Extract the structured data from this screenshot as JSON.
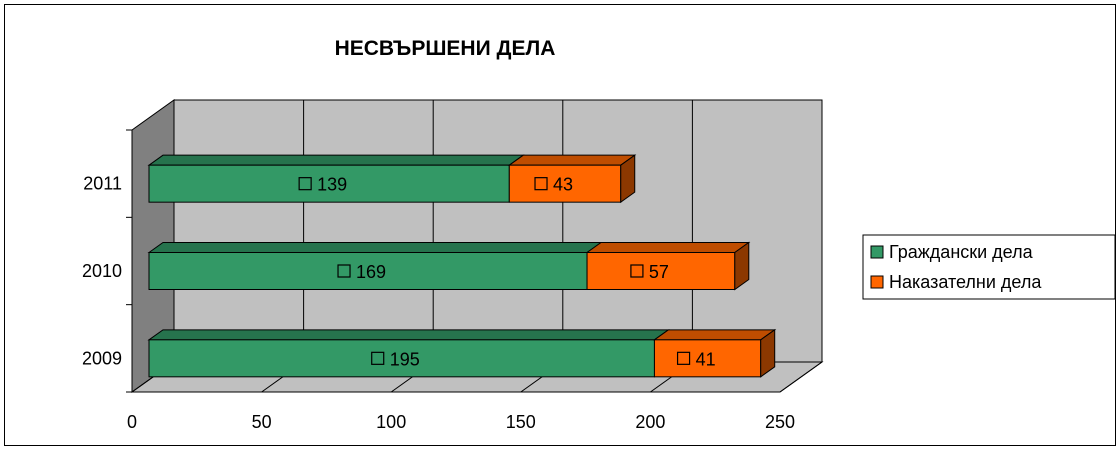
{
  "chart_data": {
    "type": "bar",
    "orientation": "horizontal",
    "stacked": true,
    "three_d": true,
    "title": "НЕСВЪРШЕНИ ДЕЛА",
    "categories": [
      "2009",
      "2010",
      "2011"
    ],
    "series": [
      {
        "name": "Граждански дела",
        "values": [
          195,
          169,
          139
        ],
        "color": "#339966"
      },
      {
        "name": "Наказателни дела",
        "values": [
          41,
          57,
          43
        ],
        "color": "#FF6600"
      }
    ],
    "xlim": [
      0,
      250
    ],
    "xticks": [
      "0",
      "50",
      "100",
      "150",
      "200",
      "250"
    ],
    "grid": true,
    "legend_position": "right",
    "data_labels": true
  }
}
